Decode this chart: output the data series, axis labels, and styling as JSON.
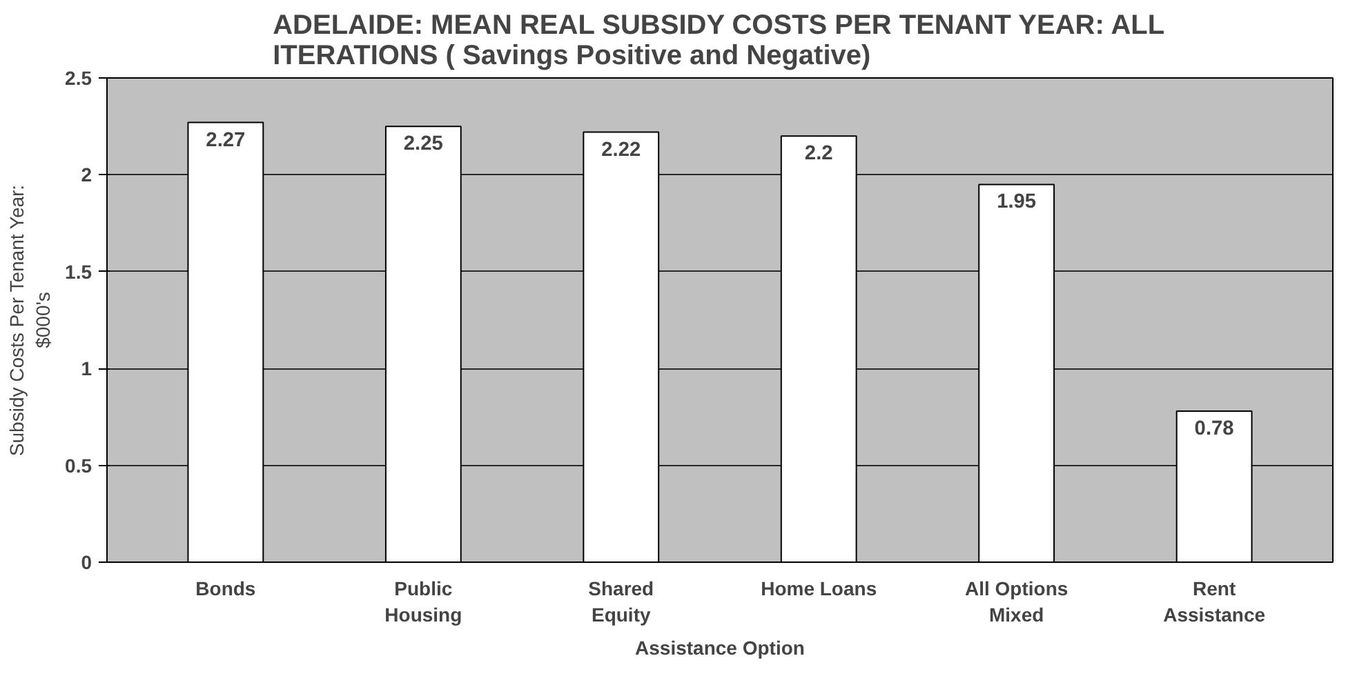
{
  "chart_data": {
    "type": "bar",
    "title": "ADELAIDE: MEAN REAL SUBSIDY COSTS PER TENANT YEAR: ALL ITERATIONS ( Savings Positive and Negative)",
    "xlabel": "Assistance Option",
    "ylabel": "Subsidy Costs Per Tenant Year: $000's",
    "categories": [
      "Bonds",
      "Public Housing",
      "Shared Equity",
      "Home Loans",
      "All Options Mixed",
      "Rent Assistance"
    ],
    "values": [
      2.27,
      2.25,
      2.22,
      2.2,
      1.95,
      0.78
    ],
    "color": "#ffffff",
    "data_labels": true,
    "ylim": [
      0,
      2.5
    ],
    "yticks": [
      0,
      0.5,
      1,
      1.5,
      2,
      2.5
    ],
    "grid": "y"
  }
}
